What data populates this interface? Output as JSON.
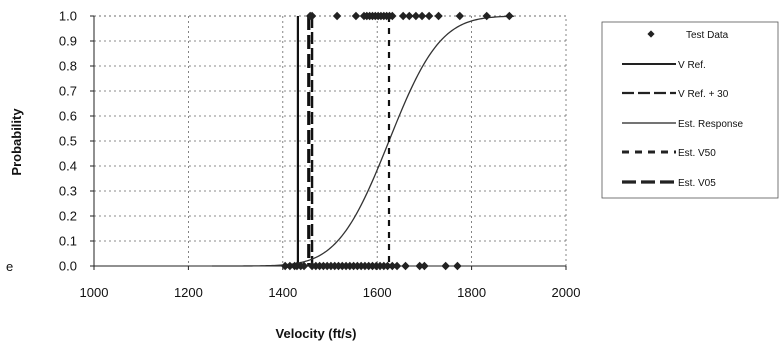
{
  "chart_data": {
    "type": "scatter",
    "title": "",
    "xlabel": "Velocity (ft/s)",
    "ylabel": "Probability",
    "xlim": [
      1000,
      2000
    ],
    "ylim": [
      0,
      1
    ],
    "x_ticks": [
      1000,
      1200,
      1400,
      1600,
      1800,
      2000
    ],
    "x_tick_labels": [
      "1000",
      "1200",
      "1400",
      "1600",
      "1800",
      "2000"
    ],
    "y_ticks": [
      0.0,
      0.1,
      0.2,
      0.3,
      0.4,
      0.5,
      0.6,
      0.7,
      0.8,
      0.9,
      1.0
    ],
    "y_tick_labels": [
      "0.0",
      "0.1",
      "0.2",
      "0.3",
      "0.4",
      "0.5",
      "0.6",
      "0.7",
      "0.8",
      "0.9",
      "1.0"
    ],
    "grid": true,
    "legend_position": "right",
    "series": [
      {
        "name": "Test Data",
        "kind": "markers",
        "marker": "diamond",
        "color": "#222222",
        "points": [
          [
            1405,
            0
          ],
          [
            1415,
            0
          ],
          [
            1425,
            0
          ],
          [
            1430,
            0
          ],
          [
            1438,
            0
          ],
          [
            1445,
            0
          ],
          [
            1462,
            0
          ],
          [
            1470,
            0
          ],
          [
            1478,
            0
          ],
          [
            1486,
            0
          ],
          [
            1494,
            0
          ],
          [
            1502,
            0
          ],
          [
            1510,
            0
          ],
          [
            1518,
            0
          ],
          [
            1526,
            0
          ],
          [
            1534,
            0
          ],
          [
            1542,
            0
          ],
          [
            1550,
            0
          ],
          [
            1558,
            0
          ],
          [
            1566,
            0
          ],
          [
            1574,
            0
          ],
          [
            1582,
            0
          ],
          [
            1590,
            0
          ],
          [
            1598,
            0
          ],
          [
            1606,
            0
          ],
          [
            1614,
            0
          ],
          [
            1622,
            0
          ],
          [
            1632,
            0
          ],
          [
            1642,
            0
          ],
          [
            1660,
            0
          ],
          [
            1690,
            0
          ],
          [
            1700,
            0
          ],
          [
            1745,
            0
          ],
          [
            1770,
            0
          ],
          [
            1458,
            1
          ],
          [
            1462,
            1
          ],
          [
            1515,
            1
          ],
          [
            1555,
            1
          ],
          [
            1572,
            1
          ],
          [
            1578,
            1
          ],
          [
            1584,
            1
          ],
          [
            1590,
            1
          ],
          [
            1596,
            1
          ],
          [
            1602,
            1
          ],
          [
            1608,
            1
          ],
          [
            1614,
            1
          ],
          [
            1620,
            1
          ],
          [
            1626,
            1
          ],
          [
            1632,
            1
          ],
          [
            1655,
            1
          ],
          [
            1668,
            1
          ],
          [
            1682,
            1
          ],
          [
            1695,
            1
          ],
          [
            1710,
            1
          ],
          [
            1730,
            1
          ],
          [
            1775,
            1
          ],
          [
            1832,
            1
          ],
          [
            1880,
            1
          ]
        ]
      },
      {
        "name": "V Ref.",
        "kind": "vline",
        "x": 1432,
        "dash": "solid",
        "width": 2.2,
        "color": "#111111"
      },
      {
        "name": "V Ref. + 30",
        "kind": "vline",
        "x": 1462,
        "dash": "12,4",
        "width": 2.4,
        "color": "#111111"
      },
      {
        "name": "Est. Response",
        "kind": "curve",
        "mu": 1625,
        "sigma": 85,
        "x_start": 1250,
        "x_end": 1890,
        "color": "#333333",
        "width": 1.3
      },
      {
        "name": "Est. V50",
        "kind": "vline",
        "x": 1625,
        "dash": "6,6",
        "width": 2.2,
        "color": "#111111"
      },
      {
        "name": "Est. V05",
        "kind": "vline",
        "x": 1455,
        "dash": "14,5",
        "width": 3.2,
        "color": "#111111"
      }
    ],
    "legend": [
      "Test Data",
      "V Ref.",
      "V Ref. + 30",
      "Est. Response",
      "Est. V50",
      "Est. V05"
    ],
    "annotations": [
      "e"
    ]
  }
}
